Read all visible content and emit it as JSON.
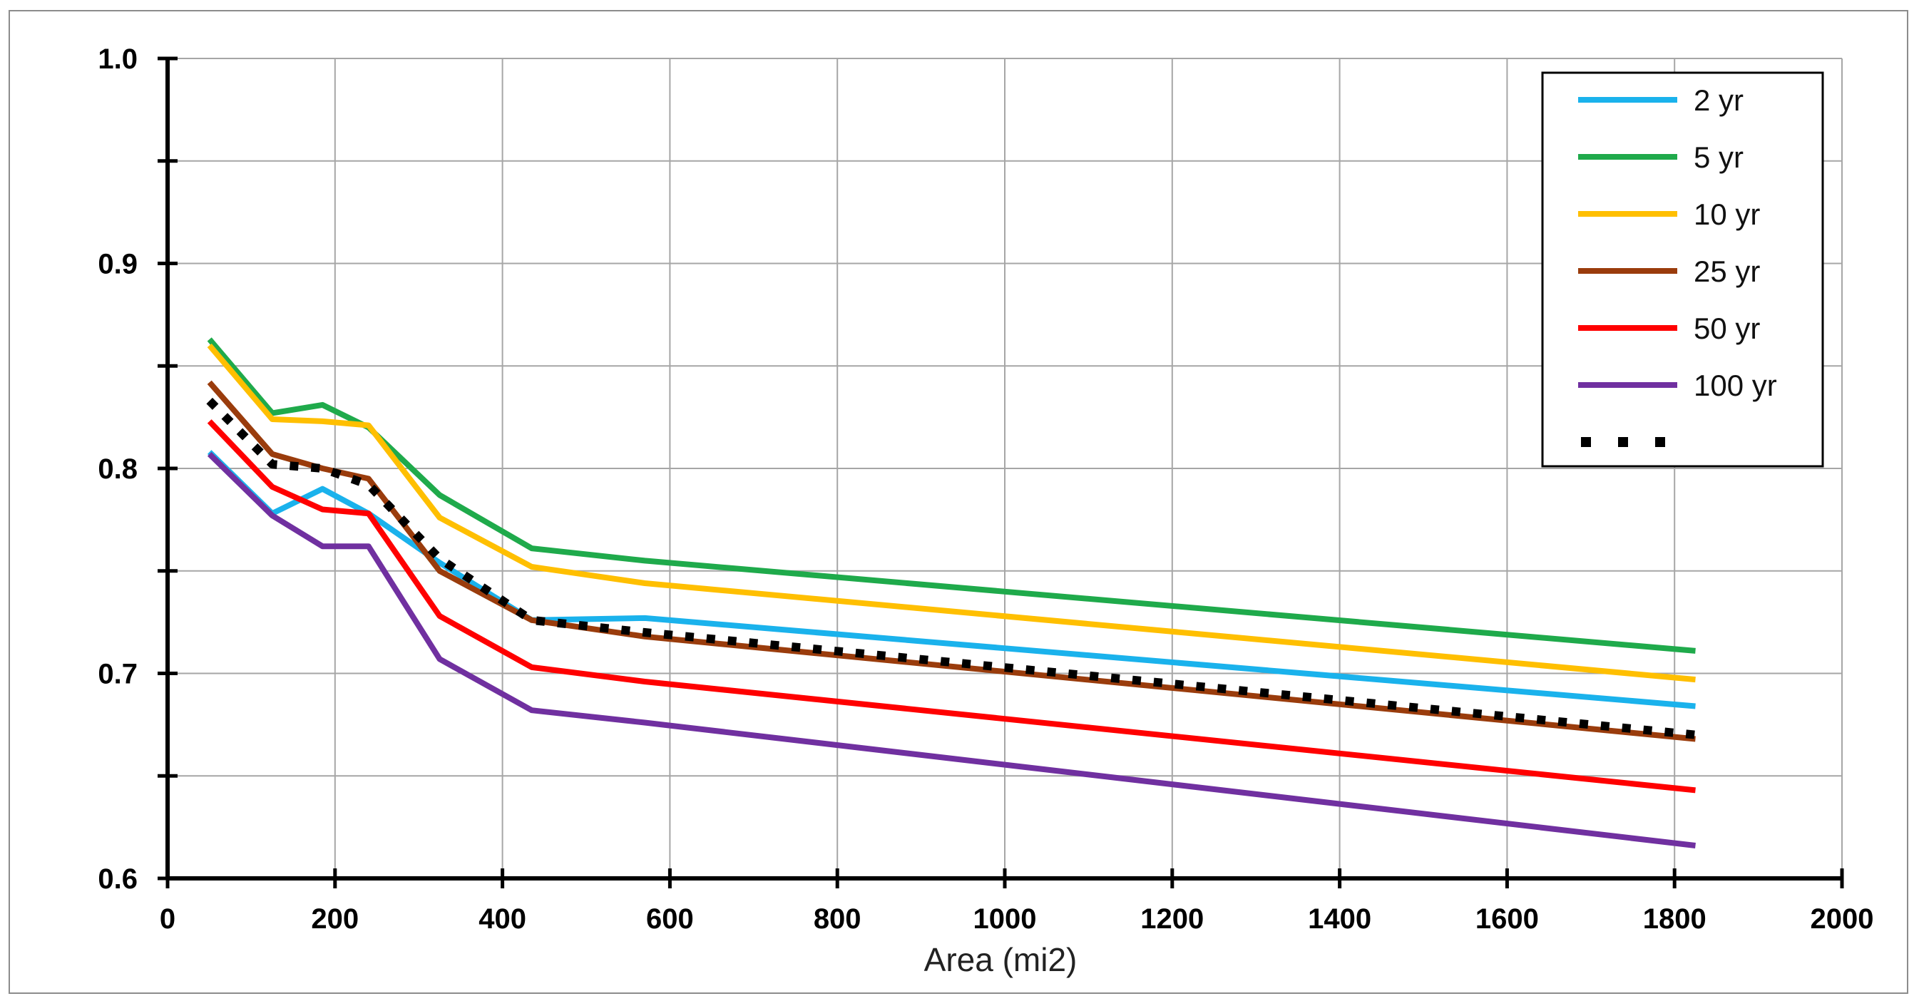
{
  "chart_data": {
    "type": "line",
    "title": "",
    "xlabel": "Area (mi2)",
    "ylabel": "",
    "xlim": [
      0,
      2000
    ],
    "ylim": [
      0.6,
      1.0
    ],
    "x_ticks": [
      0,
      200,
      400,
      600,
      800,
      1000,
      1200,
      1400,
      1600,
      1800,
      2000
    ],
    "x_tick_labels": [
      "0",
      "200",
      "400",
      "600",
      "800",
      "1000",
      "1200",
      "1400",
      "1600",
      "1800",
      "2000"
    ],
    "y_ticks": [
      0.6,
      0.7,
      0.8,
      0.9,
      1.0
    ],
    "y_tick_labels": [
      "0.6",
      "0.7",
      "0.8",
      "0.9",
      "1.0"
    ],
    "grid": true,
    "legend_position": "top-right",
    "x": [
      50,
      125,
      185,
      240,
      325,
      435,
      570,
      1825
    ],
    "series": [
      {
        "name": "2 yr",
        "color": "#1ab2ec",
        "style": "solid",
        "values": [
          0.808,
          0.778,
          0.79,
          0.778,
          0.754,
          0.726,
          0.727,
          0.684
        ]
      },
      {
        "name": "5 yr",
        "color": "#1faa4b",
        "style": "solid",
        "values": [
          0.863,
          0.827,
          0.831,
          0.82,
          0.787,
          0.761,
          0.755,
          0.711
        ]
      },
      {
        "name": "10 yr",
        "color": "#ffbf00",
        "style": "solid",
        "values": [
          0.86,
          0.824,
          0.823,
          0.821,
          0.776,
          0.752,
          0.744,
          0.697
        ]
      },
      {
        "name": "25 yr",
        "color": "#9a3c0c",
        "style": "solid",
        "values": [
          0.842,
          0.807,
          0.8,
          0.795,
          0.75,
          0.726,
          0.718,
          0.668
        ]
      },
      {
        "name": "50 yr",
        "color": "#ff0000",
        "style": "solid",
        "values": [
          0.823,
          0.791,
          0.78,
          0.778,
          0.728,
          0.703,
          0.696,
          0.643
        ]
      },
      {
        "name": "100 yr",
        "color": "#7030a0",
        "style": "solid",
        "values": [
          0.807,
          0.777,
          0.762,
          0.762,
          0.707,
          0.682,
          0.676,
          0.616
        ]
      },
      {
        "name": "",
        "color": "#000000",
        "style": "dotted",
        "values": [
          0.833,
          0.802,
          0.8,
          0.792,
          0.756,
          0.726,
          0.72,
          0.67
        ]
      }
    ]
  }
}
